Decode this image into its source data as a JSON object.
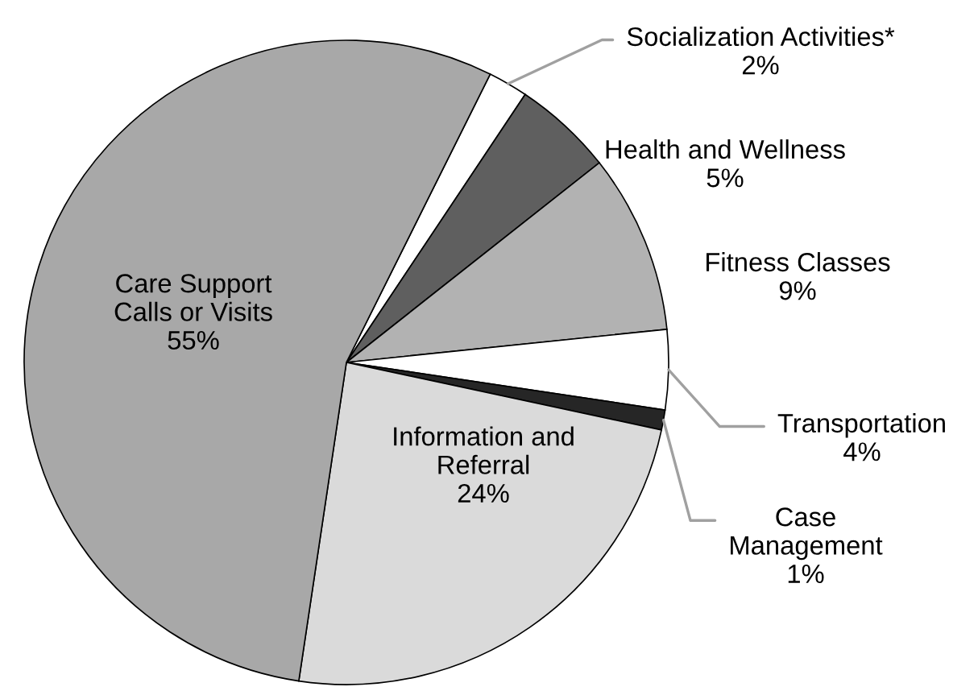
{
  "chart_data": {
    "type": "pie",
    "categories": [
      "Socialization Activities*",
      "Health and Wellness",
      "Fitness Classes",
      "Transportation",
      "Case\nManagement",
      "Information and\nReferral",
      "Care Support\nCalls or Visits"
    ],
    "values": [
      2,
      5,
      9,
      4,
      1,
      24,
      55
    ],
    "colors": [
      "#ffffff",
      "#5f5f5f",
      "#b2b2b2",
      "#ffffff",
      "#262626",
      "#dadada",
      "#a8a8a8"
    ],
    "value_labels": [
      "2%",
      "5%",
      "9%",
      "4%",
      "1%",
      "24%",
      "55%"
    ],
    "legend": false
  }
}
